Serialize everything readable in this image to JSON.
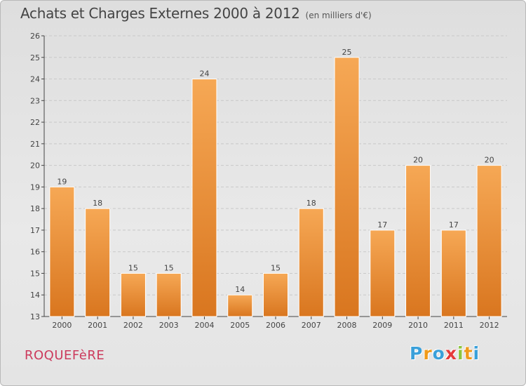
{
  "header": {
    "title": "Achats et Charges Externes 2000 à 2012",
    "unit": "(en milliers d'€)"
  },
  "footer": {
    "commune": "ROQUEFèRE",
    "logo": [
      "P",
      "r",
      "o",
      "x",
      "i",
      "t",
      "i"
    ],
    "logo_colors": [
      "#3aa0da",
      "#f09a1a",
      "#3aa0da",
      "#e53a3a",
      "#8dc63f",
      "#f09a1a",
      "#3aa0da"
    ]
  },
  "colors": {
    "bar_top": "#f6a855",
    "bar_bottom": "#d9761f",
    "axis": "#444444",
    "grid": "#c8c8c8",
    "title": "#444444",
    "commune": "#cc3a5c"
  },
  "chart_data": {
    "type": "bar",
    "title": "Achats et Charges Externes 2000 à 2012",
    "subtitle": "(en milliers d'€)",
    "xlabel": "",
    "ylabel": "",
    "categories": [
      "2000",
      "2001",
      "2002",
      "2003",
      "2004",
      "2005",
      "2006",
      "2007",
      "2008",
      "2009",
      "2010",
      "2011",
      "2012"
    ],
    "values": [
      19,
      18,
      15,
      15,
      24,
      14,
      15,
      18,
      25,
      17,
      20,
      17,
      20
    ],
    "ylim": [
      13,
      26
    ],
    "yticks": [
      13,
      14,
      15,
      16,
      17,
      18,
      19,
      20,
      21,
      22,
      23,
      24,
      25,
      26
    ],
    "grid": true,
    "legend": "none"
  }
}
